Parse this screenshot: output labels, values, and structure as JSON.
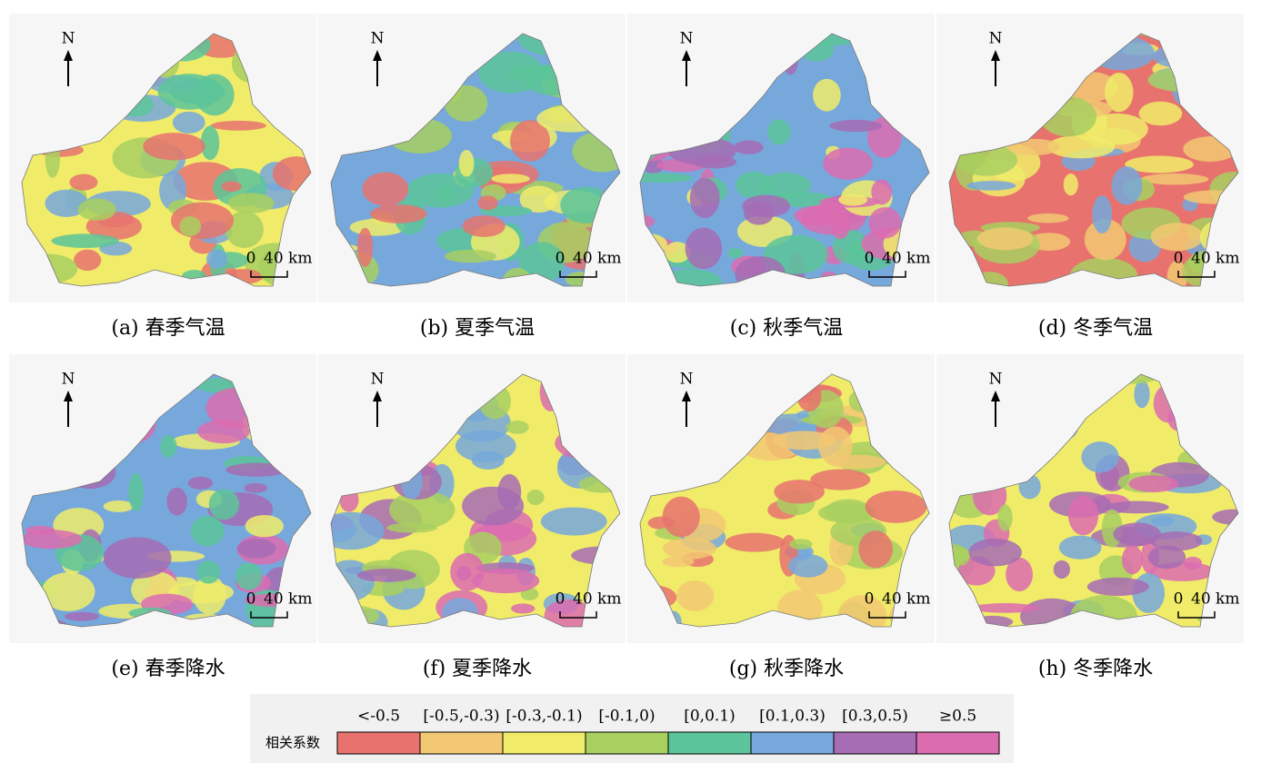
{
  "panels": [
    {
      "caption": "(a) 春季气温"
    },
    {
      "caption": "(b) 夏季气温"
    },
    {
      "caption": "(c) 秋季气温"
    },
    {
      "caption": "(d) 冬季气温"
    },
    {
      "caption": "(e) 春季降水"
    },
    {
      "caption": "(f) 夏季降水"
    },
    {
      "caption": "(g) 秋季降水"
    },
    {
      "caption": "(h) 冬季降水"
    }
  ],
  "north": "N",
  "scale": {
    "zero": "0",
    "distance": "40 km"
  },
  "legend": {
    "title": "相关系数",
    "items": [
      {
        "label": "<-0.5",
        "color": "#e8736e"
      },
      {
        "label": "[-0.5,-0.3)",
        "color": "#f2c872"
      },
      {
        "label": "[-0.3,-0.1)",
        "color": "#f0ec6a"
      },
      {
        "label": "[-0.1,0)",
        "color": "#a8cf60"
      },
      {
        "label": "[0,0.1)",
        "color": "#5cc49a"
      },
      {
        "label": "[0.1,0.3)",
        "color": "#76a8dc"
      },
      {
        "label": "[0.3,0.5)",
        "color": "#a66cb4"
      },
      {
        "label": "≥0.5",
        "color": "#dc6cb0"
      }
    ]
  }
}
